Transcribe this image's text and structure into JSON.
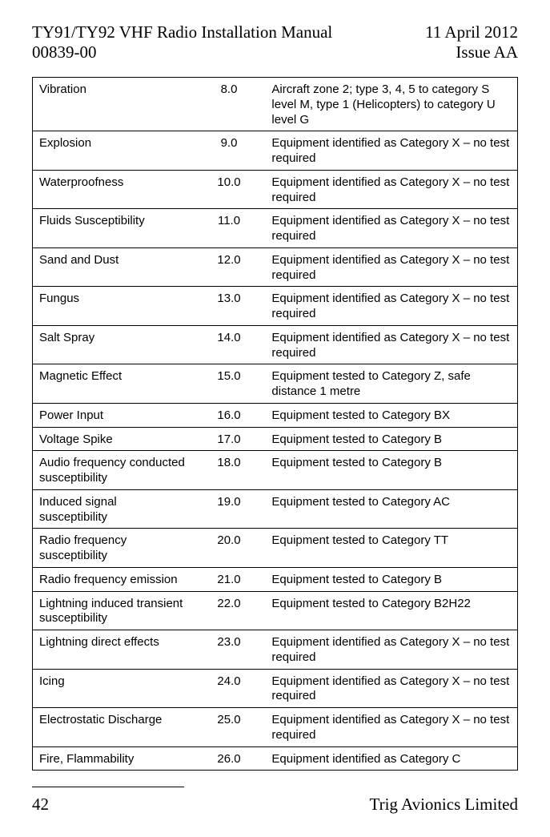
{
  "header": {
    "title_left_line1": "TY91/TY92 VHF Radio Installation Manual",
    "title_left_line2": "00839-00",
    "title_right_line1": "11 April 2012",
    "title_right_line2": "Issue AA"
  },
  "table": {
    "font_family": "Arial",
    "font_size_pt": 11,
    "border_color": "#000000",
    "background_color": "#ffffff",
    "col_widths_pct": [
      33,
      15,
      52
    ],
    "col2_align": "center",
    "rows": [
      [
        "Vibration",
        "8.0",
        "Aircraft zone 2; type 3, 4, 5 to category S level M, type 1 (Helicopters) to category U level G"
      ],
      [
        "Explosion",
        "9.0",
        "Equipment identified as Category X – no test required"
      ],
      [
        "Waterproofness",
        "10.0",
        "Equipment identified as Category X – no test required"
      ],
      [
        "Fluids Susceptibility",
        "11.0",
        "Equipment identified as Category X – no test required"
      ],
      [
        "Sand and Dust",
        "12.0",
        "Equipment identified as Category X – no test required"
      ],
      [
        "Fungus",
        "13.0",
        "Equipment identified as Category X – no test required"
      ],
      [
        "Salt Spray",
        "14.0",
        "Equipment identified as Category X – no test required"
      ],
      [
        "Magnetic Effect",
        "15.0",
        "Equipment tested to Category Z, safe distance 1 metre"
      ],
      [
        "Power Input",
        "16.0",
        "Equipment tested to Category BX"
      ],
      [
        "Voltage Spike",
        "17.0",
        "Equipment tested to Category B"
      ],
      [
        "Audio frequency conducted susceptibility",
        "18.0",
        "Equipment tested to Category B"
      ],
      [
        "Induced signal susceptibility",
        "19.0",
        "Equipment tested to Category AC"
      ],
      [
        "Radio frequency susceptibility",
        "20.0",
        "Equipment tested to Category TT"
      ],
      [
        "Radio frequency emission",
        "21.0",
        "Equipment tested to Category B"
      ],
      [
        "Lightning induced transient susceptibility",
        "22.0",
        "Equipment tested to Category B2H22"
      ],
      [
        "Lightning direct effects",
        "23.0",
        "Equipment identified as Category X – no test required"
      ],
      [
        "Icing",
        "24.0",
        "Equipment identified as Category X – no test required"
      ],
      [
        "Electrostatic Discharge",
        "25.0",
        "Equipment identified as Category X – no test required"
      ],
      [
        "Fire, Flammability",
        "26.0",
        "Equipment identified as Category C"
      ]
    ]
  },
  "footer": {
    "page_number": "42",
    "company": "Trig Avionics Limited"
  }
}
